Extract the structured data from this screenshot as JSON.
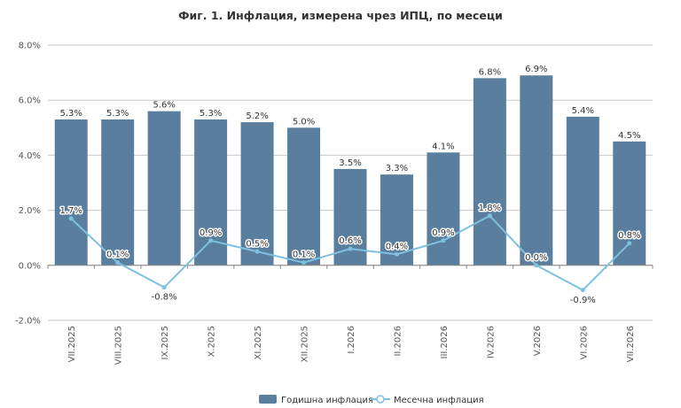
{
  "chart_data": {
    "type": "bar",
    "title": "Фиг. 1. Инфлация, измерена чрез ИПЦ, по месеци",
    "categories": [
      "VII.2025",
      "VIII.2025",
      "IX.2025",
      "X.2025",
      "XI.2025",
      "XII.2025",
      "I.2026",
      "II.2026",
      "III.2026",
      "IV.2026",
      "V.2026",
      "VI.2026",
      "VII.2026"
    ],
    "series": [
      {
        "name": "Годишна инфлация",
        "type": "bar",
        "color": "#5a7f9e",
        "values": [
          5.3,
          5.3,
          5.6,
          5.3,
          5.2,
          5.0,
          3.5,
          3.3,
          4.1,
          6.8,
          6.9,
          5.4,
          4.5
        ],
        "labels": [
          "5.3%",
          "5.3%",
          "5.6%",
          "5.3%",
          "5.2%",
          "5.0%",
          "3.5%",
          "3.3%",
          "4.1%",
          "6.8%",
          "6.9%",
          "5.4%",
          "4.5%"
        ]
      },
      {
        "name": "Месечна инфлация",
        "type": "line",
        "color": "#7ec0e0",
        "values": [
          1.7,
          0.1,
          -0.8,
          0.9,
          0.5,
          0.1,
          0.6,
          0.4,
          0.9,
          1.8,
          0.0,
          -0.9,
          0.8
        ],
        "labels": [
          "1.7%",
          "0.1%",
          "-0.8%",
          "0.9%",
          "0.5%",
          "0.1%",
          "0.6%",
          "0.4%",
          "0.9%",
          "1.8%",
          "0.0%",
          "-0.9%",
          "0.8%"
        ]
      }
    ],
    "ylim": [
      -2.0,
      8.0
    ],
    "yticks": [
      -2.0,
      0.0,
      2.0,
      4.0,
      6.0,
      8.0
    ],
    "ytick_labels": [
      "-2.0%",
      "0.0%",
      "2.0%",
      "4.0%",
      "6.0%",
      "8.0%"
    ],
    "xlabel": "",
    "ylabel": "",
    "grid": true,
    "legend_position": "bottom-right"
  }
}
